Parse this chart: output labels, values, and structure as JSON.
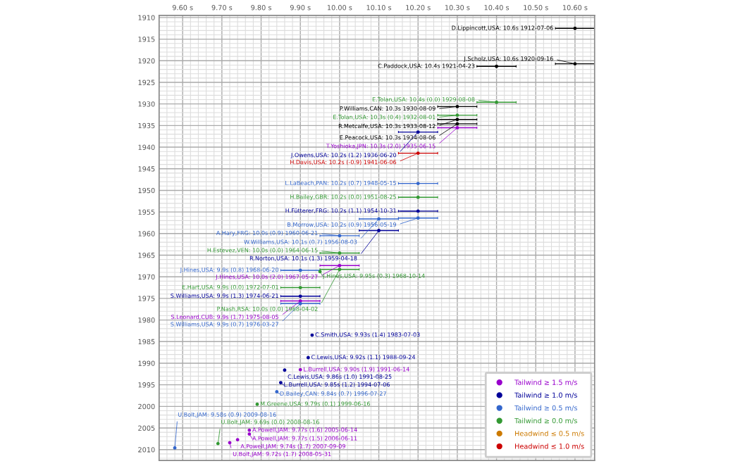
{
  "chart_data": {
    "type": "scatter",
    "xlim": [
      9.54,
      10.65
    ],
    "ylim": [
      2012.5,
      1909.5
    ],
    "xticks": [
      {
        "value": 9.6,
        "label": "9.60 s"
      },
      {
        "value": 9.7,
        "label": "9.70 s"
      },
      {
        "value": 9.8,
        "label": "9.80 s"
      },
      {
        "value": 9.9,
        "label": "9.90 s"
      },
      {
        "value": 10.0,
        "label": "10.00 s"
      },
      {
        "value": 10.1,
        "label": "10.10 s"
      },
      {
        "value": 10.2,
        "label": "10.20 s"
      },
      {
        "value": 10.3,
        "label": "10.30 s"
      },
      {
        "value": 10.4,
        "label": "10.40 s"
      },
      {
        "value": 10.5,
        "label": "10.50 s"
      },
      {
        "value": 10.6,
        "label": "10.60 s"
      }
    ],
    "yticks": [
      1910,
      1915,
      1920,
      1925,
      1930,
      1935,
      1940,
      1945,
      1950,
      1955,
      1960,
      1965,
      1970,
      1975,
      1980,
      1985,
      1990,
      1995,
      2000,
      2005,
      2010
    ],
    "grid": true,
    "legend": "bottom right",
    "marker": "circle",
    "series": [
      {
        "name": "Tailwind ≥ 1.5 m/s",
        "color": "#9900cc",
        "x": [
          10.3,
          10.0,
          9.9,
          9.9,
          9.77,
          9.77,
          9.74,
          9.72
        ],
        "values": [
          1935.5,
          1967.4,
          1975.6,
          1991.5,
          2005.5,
          2006.4,
          2007.7,
          2008.4
        ],
        "xerrors": [
          0.05,
          0.05,
          0.05,
          null,
          null,
          null,
          null,
          null
        ],
        "value_labels": [
          "T.Yoshioka,JPN: 10.3s (2.0) 1935-06-15",
          "J.Hines,USA: 10.0s (2.0) 1967-05-27",
          "S.Leonard,CUB: 9.9s (1.7) 1975-08-05",
          "L.Burrell,USA: 9.90s (1.9) 1991-06-14",
          "A.Powell,JAM: 9.77s (1.6) 2005-06-14",
          "A.Powell,JAM: 9.77s (1.5) 2006-06-11",
          "A.Powell,JAM: 9.74s (1.7) 2007-09-09",
          "U.Bolt,JAM: 9.72s (1.7) 2008-05-31"
        ]
      },
      {
        "name": "Tailwind ≥ 1.0 m/s",
        "color": "#000099",
        "x": [
          10.2,
          10.2,
          10.1,
          9.9,
          9.93,
          9.92,
          9.86,
          9.85
        ],
        "values": [
          1936.5,
          1954.8,
          1959.3,
          1974.5,
          1983.5,
          1988.7,
          1991.6,
          1994.5
        ],
        "xerrors": [
          0.05,
          0.05,
          0.05,
          0.05,
          null,
          null,
          null,
          null
        ],
        "value_labels": [
          "J.Owens,USA: 10.2s (1.2) 1936-06-20",
          "H.Fütterer,FRG: 10.2s (1.1) 1954-10-31",
          "R.Norton,USA: 10.1s (1.3) 1959-04-18",
          "S.Williams,USA: 9.9s (1.3) 1974-06-21",
          "C.Smith,USA: 9.93s (1.4) 1983-07-03",
          "C.Lewis,USA: 9.92s (1.1) 1988-09-24",
          "C.Lewis,USA: 9.86s (1.0) 1991-08-25",
          "L.Burrell,USA: 9.85s (1.2) 1994-07-06"
        ]
      },
      {
        "name": "Tailwind ≥ 0.5 m/s",
        "color": "#3366cc",
        "x": [
          10.2,
          10.2,
          10.1,
          10.0,
          9.9,
          9.9,
          9.84,
          9.58
        ],
        "values": [
          1948.4,
          1956.4,
          1956.6,
          1960.5,
          1968.5,
          1976.2,
          1996.6,
          2009.6
        ],
        "xerrors": [
          0.05,
          0.05,
          0.05,
          0.05,
          0.05,
          0.05,
          null,
          null
        ],
        "value_labels": [
          "L.LaBeach,PAN: 10.2s (0.7) 1948-05-15",
          "B.Morrow,USA: 10.2s (0.9) 1956-05-19",
          "W.Williams,USA: 10.1s (0.7) 1956-08-03",
          "A.Hary,FRG: 10.0s (0.9) 1960-06-21",
          "J.Hines,USA: 9.9s (0.8) 1968-06-20",
          "S.Williams,USA: 9.9s (0.7) 1976-03-27",
          "D.Bailey,CAN: 9.84s (0.7) 1996-07-27",
          "U.Bolt,JAM: 9.58s (0.9) 2009-08-16"
        ]
      },
      {
        "name": "Tailwind ≥ 0.0 m/s",
        "color": "#339933",
        "x": [
          10.4,
          10.3,
          10.2,
          10.0,
          10.0,
          9.95,
          9.9,
          9.79,
          9.69
        ],
        "values": [
          1929.6,
          1932.6,
          1951.6,
          1964.5,
          1968.3,
          1968.8,
          1972.5,
          1999.5,
          2008.6
        ],
        "xerrors": [
          0.05,
          0.05,
          0.05,
          0.05,
          0.05,
          null,
          0.05,
          null,
          null
        ],
        "value_labels": [
          "E.Tolan,USA: 10.4s (0.0) 1929-08-08",
          "E.Tolan,USA: 10.3s (0.4) 1932-08-01",
          "H.Bailey,GBR: 10.2s (0.0) 1951-08-25",
          "H.Estevez,VEN: 10.0s (0.0) 1964-06-15",
          "P.Nash,RSA: 10.0s (0.0) 1968-04-02",
          "J.Hines,USA: 9.95s (0.3) 1968-10-14",
          "E.Hart,USA: 9.9s (0.0) 1972-07-01",
          "M.Greene,USA: 9.79s (0.1) 1999-06-16",
          "U.Bolt,JAM: 9.69s (0.0) 2008-08-16"
        ]
      },
      {
        "name": "Headwind ≤ 0.5 m/s",
        "color": "#cc7a00"
      },
      {
        "name": "Headwind ≤ 1.0 m/s",
        "color": "#cc0000",
        "x": [
          10.2
        ],
        "values": [
          1941.4
        ],
        "xerrors": [
          0.05
        ],
        "value_labels": [
          "H.Davis,USA: 10.2s (-0.9) 1941-06-06"
        ]
      },
      {
        "color": "#000000",
        "x": [
          10.6,
          10.6,
          10.4,
          10.3,
          10.3,
          10.3
        ],
        "values": [
          1912.5,
          1920.7,
          1921.3,
          1930.6,
          1933.6,
          1934.6
        ],
        "xerrors": [
          0.05,
          0.05,
          0.05,
          0.05,
          0.05,
          0.05
        ],
        "value_labels": [
          "D.Lippincott,USA: 10.6s 1912-07-06",
          "J.Scholz,USA: 10.6s 1920-09-16",
          "C.Paddock,USA: 10.4s 1921-04-23",
          "P.Williams,CAN: 10.3s 1930-08-09",
          "R.Metcalfe,USA: 10.3s 1933-08-12",
          "E.Peacock,USA: 10.3s 1934-08-06"
        ]
      }
    ]
  }
}
